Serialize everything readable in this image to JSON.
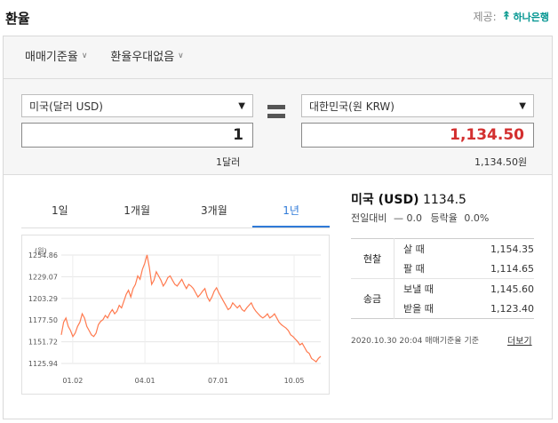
{
  "header": {
    "title": "환율",
    "provider_label": "제공:",
    "provider_name": "하나은행"
  },
  "filters": [
    {
      "label": "매매기준율"
    },
    {
      "label": "환율우대없음"
    }
  ],
  "converter": {
    "from_currency": "미국(달러 USD)",
    "from_amount": "1",
    "from_caption": "1달러",
    "to_currency": "대한민국(원 KRW)",
    "to_amount": "1,134.50",
    "to_caption": "1,134.50원"
  },
  "tabs": [
    {
      "label": "1일",
      "active": false
    },
    {
      "label": "1개월",
      "active": false
    },
    {
      "label": "3개월",
      "active": false
    },
    {
      "label": "1년",
      "active": true
    }
  ],
  "info": {
    "title_country": "미국 (USD)",
    "title_rate": "1134.5",
    "change_label": "전일대비",
    "change_value": "0.0",
    "rate_label": "등락율",
    "rate_value": "0.0%"
  },
  "rates_table": [
    {
      "category": "현찰",
      "rows": [
        {
          "type": "살 때",
          "value": "1,154.35"
        },
        {
          "type": "팔 때",
          "value": "1,114.65"
        }
      ]
    },
    {
      "category": "송금",
      "rows": [
        {
          "type": "보낼 때",
          "value": "1,145.60"
        },
        {
          "type": "받을 때",
          "value": "1,123.40"
        }
      ]
    }
  ],
  "note": "2020.10.30 20:04 매매기준율 기준",
  "more_link": "더보기",
  "colors": {
    "accent_blue": "#2f7ad8",
    "amount_red": "#d32f2f",
    "line": "#ff7a4f"
  },
  "chart_data": {
    "type": "line",
    "ylabel": "(원)",
    "y_ticks": [
      "1254.86",
      "1229.07",
      "1203.29",
      "1177.50",
      "1151.72",
      "1125.94"
    ],
    "ylim": [
      1125.94,
      1254.86
    ],
    "x_ticks": [
      {
        "label": "01.02",
        "t": 12
      },
      {
        "label": "04.01",
        "t": 88
      },
      {
        "label": "07.01",
        "t": 165
      },
      {
        "label": "10.05",
        "t": 245
      }
    ],
    "x_range": [
      0,
      273
    ],
    "grid": true,
    "series": [
      {
        "values": [
          1160,
          1175,
          1180,
          1170,
          1165,
          1158,
          1162,
          1170,
          1175,
          1185,
          1180,
          1170,
          1165,
          1160,
          1158,
          1162,
          1172,
          1176,
          1178,
          1183,
          1180,
          1186,
          1190,
          1185,
          1188,
          1195,
          1192,
          1200,
          1208,
          1213,
          1205,
          1215,
          1220,
          1230,
          1226,
          1238,
          1245,
          1255,
          1240,
          1220,
          1225,
          1235,
          1230,
          1225,
          1218,
          1222,
          1228,
          1230,
          1225,
          1220,
          1218,
          1222,
          1226,
          1220,
          1215,
          1220,
          1218,
          1215,
          1210,
          1205,
          1208,
          1212,
          1215,
          1205,
          1200,
          1205,
          1212,
          1216,
          1210,
          1205,
          1200,
          1195,
          1190,
          1192,
          1198,
          1195,
          1192,
          1195,
          1190,
          1188,
          1192,
          1195,
          1198,
          1192,
          1188,
          1185,
          1182,
          1180,
          1182,
          1185,
          1180,
          1182,
          1185,
          1180,
          1175,
          1172,
          1170,
          1168,
          1165,
          1160,
          1158,
          1155,
          1152,
          1148,
          1150,
          1145,
          1140,
          1138,
          1132,
          1130,
          1128,
          1132,
          1134.5
        ]
      }
    ]
  }
}
